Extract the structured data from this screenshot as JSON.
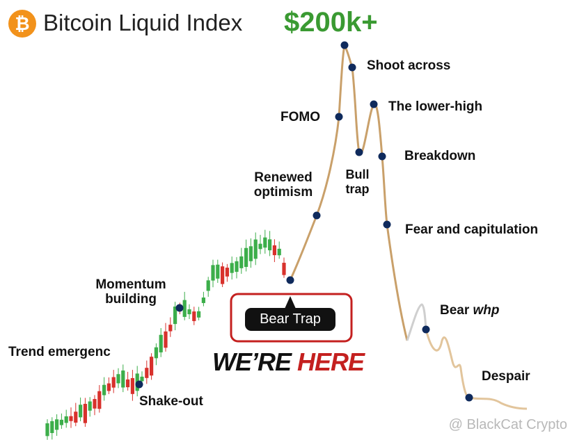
{
  "header": {
    "icon": "₿",
    "title": "Bitcoin Liquid Index",
    "target": "$200k+"
  },
  "labels": [
    "Trend emergenc",
    "Shake-out",
    "Momentum building",
    "Renewed optimism",
    "FOMO",
    "Bull trap",
    "Shoot across",
    "The lower-high",
    "Breakdown",
    "Fear and capitulation",
    "Despair"
  ],
  "bear_whp": {
    "word": "Bear",
    "suffix": "whp"
  },
  "callout": {
    "label": "Bear Trap",
    "headline_dark": "WE’RE",
    "headline_red": "HERE"
  },
  "watermark": "@ BlackCat Crypto"
}
